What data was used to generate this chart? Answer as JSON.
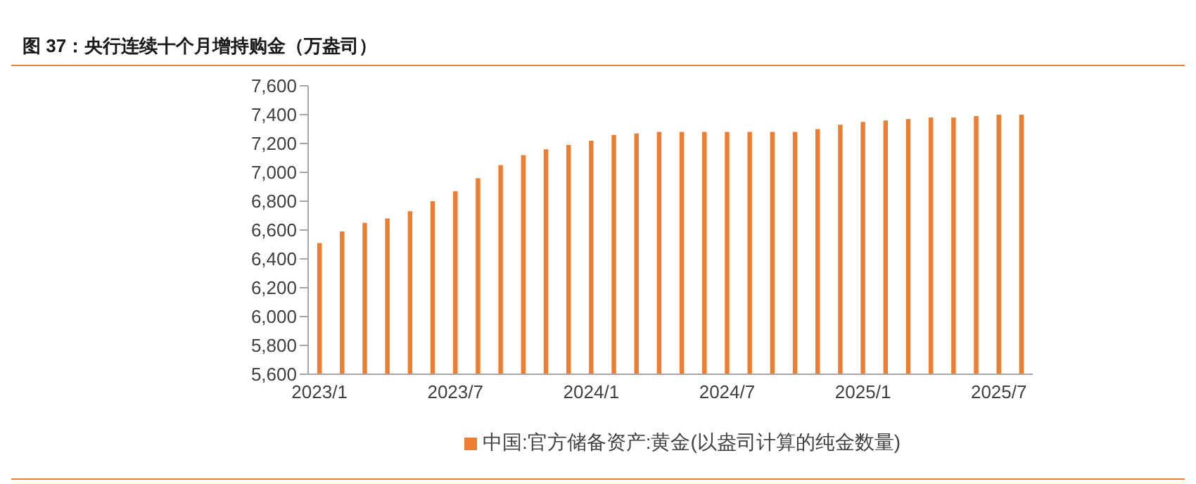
{
  "chart_data": {
    "type": "bar",
    "title": "图 37：央行连续十个月增持购金（万盎司）",
    "categories": [
      "2023/1",
      null,
      null,
      null,
      null,
      null,
      "2023/7",
      null,
      null,
      null,
      null,
      null,
      "2024/1",
      null,
      null,
      null,
      null,
      null,
      "2024/7",
      null,
      null,
      null,
      null,
      null,
      "2025/1",
      null,
      null,
      null,
      null,
      null,
      "2025/7",
      null
    ],
    "series": [
      {
        "name": "中国:官方储备资产:黄金(以盎司计算的纯金数量)",
        "color": "#ed7d31",
        "values": [
          6510,
          6590,
          6650,
          6680,
          6730,
          6800,
          6870,
          6960,
          7050,
          7120,
          7160,
          7190,
          7220,
          7260,
          7270,
          7280,
          7280,
          7280,
          7280,
          7280,
          7280,
          7280,
          7300,
          7330,
          7350,
          7360,
          7370,
          7380,
          7380,
          7390,
          7400,
          7400
        ]
      }
    ],
    "ylim": [
      5600,
      7600
    ],
    "yticks": [
      {
        "value": 5600,
        "label": "5,600"
      },
      {
        "value": 5800,
        "label": "5,800"
      },
      {
        "value": 6000,
        "label": "6,000"
      },
      {
        "value": 6200,
        "label": "6,200"
      },
      {
        "value": 6400,
        "label": "6,400"
      },
      {
        "value": 6600,
        "label": "6,600"
      },
      {
        "value": 6800,
        "label": "6,800"
      },
      {
        "value": 7000,
        "label": "7,000"
      },
      {
        "value": 7200,
        "label": "7,200"
      },
      {
        "value": 7400,
        "label": "7,400"
      },
      {
        "value": 7600,
        "label": "7,600"
      }
    ],
    "grid": false,
    "legend": "bottom"
  }
}
